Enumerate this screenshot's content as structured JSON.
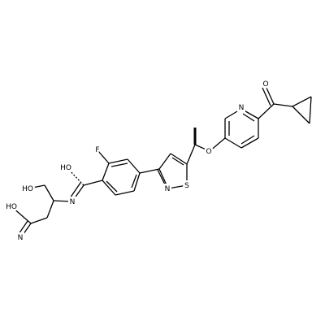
{
  "atoms": [
    {
      "label": "O"
    },
    {
      "label": "N"
    },
    {
      "label": "O"
    },
    {
      "label": "S"
    },
    {
      "label": "N"
    },
    {
      "label": "F"
    },
    {
      "label": "HO"
    },
    {
      "label": "N"
    },
    {
      "label": "HO"
    },
    {
      "label": "HO"
    },
    {
      "label": "N"
    }
  ]
}
